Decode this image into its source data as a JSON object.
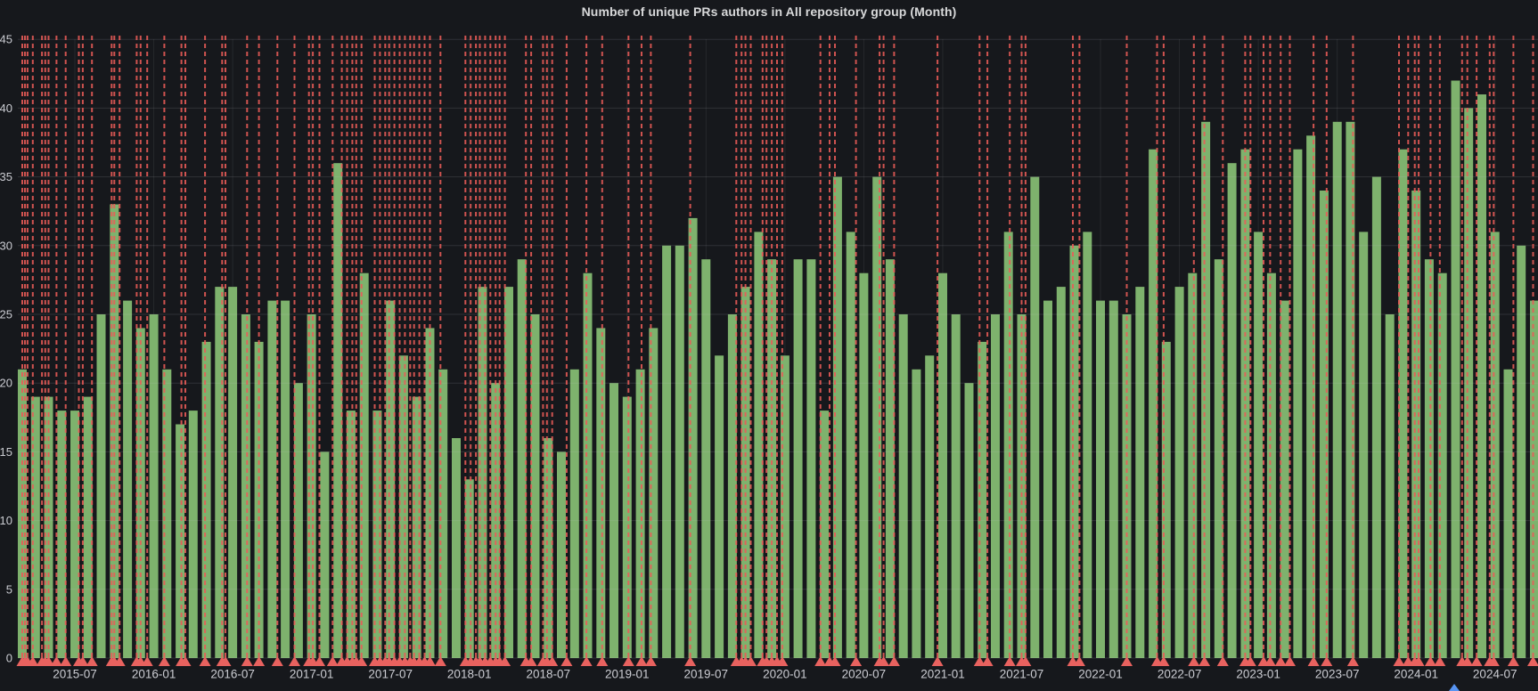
{
  "panel": {
    "title": "Number of unique PRs authors in All repository group (Month)"
  },
  "chart_data": {
    "type": "bar",
    "title": "Number of unique PRs authors in All repository group (Month)",
    "xlabel": "",
    "ylabel": "",
    "ylim": [
      0,
      45
    ],
    "y_ticks": [
      0,
      5,
      10,
      15,
      20,
      25,
      30,
      35,
      40,
      45
    ],
    "x_tick_labels": [
      "2015-07",
      "2016-01",
      "2016-07",
      "2017-01",
      "2017-07",
      "2018-01",
      "2018-07",
      "2019-01",
      "2019-07",
      "2020-01",
      "2020-07",
      "2021-01",
      "2021-07",
      "2022-01",
      "2022-07",
      "2023-01",
      "2023-07",
      "2024-01",
      "2024-07"
    ],
    "grid": true,
    "legend_position": "none",
    "series_name": "Number of unique PRs authors",
    "categories": [
      "2015-03",
      "2015-04",
      "2015-05",
      "2015-06",
      "2015-07",
      "2015-08",
      "2015-09",
      "2015-10",
      "2015-11",
      "2015-12",
      "2016-01",
      "2016-02",
      "2016-03",
      "2016-04",
      "2016-05",
      "2016-06",
      "2016-07",
      "2016-08",
      "2016-09",
      "2016-10",
      "2016-11",
      "2016-12",
      "2017-01",
      "2017-02",
      "2017-03",
      "2017-04",
      "2017-05",
      "2017-06",
      "2017-07",
      "2017-08",
      "2017-09",
      "2017-10",
      "2017-11",
      "2017-12",
      "2018-01",
      "2018-02",
      "2018-03",
      "2018-04",
      "2018-05",
      "2018-06",
      "2018-07",
      "2018-08",
      "2018-09",
      "2018-10",
      "2018-11",
      "2018-12",
      "2019-01",
      "2019-02",
      "2019-03",
      "2019-04",
      "2019-05",
      "2019-06",
      "2019-07",
      "2019-08",
      "2019-09",
      "2019-10",
      "2019-11",
      "2019-12",
      "2020-01",
      "2020-02",
      "2020-03",
      "2020-04",
      "2020-05",
      "2020-06",
      "2020-07",
      "2020-08",
      "2020-09",
      "2020-10",
      "2020-11",
      "2020-12",
      "2021-01",
      "2021-02",
      "2021-03",
      "2021-04",
      "2021-05",
      "2021-06",
      "2021-07",
      "2021-08",
      "2021-09",
      "2021-10",
      "2021-11",
      "2021-12",
      "2022-01",
      "2022-02",
      "2022-03",
      "2022-04",
      "2022-05",
      "2022-06",
      "2022-07",
      "2022-08",
      "2022-09",
      "2022-10",
      "2022-11",
      "2022-12",
      "2023-01",
      "2023-02",
      "2023-03",
      "2023-04",
      "2023-05",
      "2023-06",
      "2023-07",
      "2023-08",
      "2023-09",
      "2023-10",
      "2023-11",
      "2023-12",
      "2024-01",
      "2024-02",
      "2024-03",
      "2024-04",
      "2024-05",
      "2024-06",
      "2024-07",
      "2024-08",
      "2024-09",
      "2024-10"
    ],
    "values": [
      21,
      19,
      19,
      18,
      18,
      19,
      25,
      33,
      26,
      24,
      25,
      21,
      17,
      18,
      23,
      27,
      27,
      25,
      23,
      26,
      26,
      20,
      25,
      15,
      36,
      18,
      28,
      18,
      26,
      22,
      19,
      24,
      21,
      16,
      13,
      27,
      20,
      27,
      29,
      25,
      16,
      15,
      21,
      28,
      24,
      20,
      19,
      21,
      24,
      30,
      30,
      32,
      29,
      22,
      25,
      27,
      31,
      29,
      22,
      29,
      29,
      18,
      35,
      31,
      28,
      35,
      29,
      25,
      21,
      22,
      28,
      25,
      20,
      23,
      25,
      31,
      25,
      35,
      26,
      27,
      30,
      31,
      26,
      26,
      25,
      27,
      37,
      23,
      27,
      28,
      39,
      29,
      36,
      37,
      31,
      28,
      26,
      37,
      38,
      34,
      39,
      39,
      31,
      35,
      25,
      37,
      34,
      29,
      28,
      42,
      40,
      41,
      31,
      21,
      30,
      26
    ],
    "annotations": {
      "style": "vertical dashed red lines with triangle markers at the x-axis",
      "month_positions": [
        0.0,
        0.2,
        0.4,
        0.8,
        1.5,
        1.75,
        2.0,
        2.6,
        3.3,
        4.3,
        4.6,
        5.3,
        6.8,
        7.0,
        7.4,
        8.7,
        9.0,
        9.5,
        10.8,
        12.1,
        12.4,
        13.9,
        15.2,
        15.45,
        17.1,
        18.0,
        19.4,
        20.7,
        21.8,
        22.1,
        22.6,
        23.6,
        24.3,
        24.7,
        25.1,
        25.4,
        25.8,
        26.8,
        27.2,
        27.6,
        27.9,
        28.3,
        28.7,
        29.1,
        29.5,
        29.8,
        30.2,
        30.6,
        31.0,
        31.8,
        33.7,
        34.1,
        34.5,
        34.8,
        35.2,
        35.6,
        36.0,
        36.3,
        36.7,
        38.3,
        38.7,
        39.6,
        39.9,
        40.3,
        41.4,
        42.9,
        44.1,
        46.1,
        47.1,
        47.8,
        50.8,
        54.3,
        54.7,
        55.0,
        55.4,
        56.3,
        56.6,
        57.0,
        57.4,
        57.8,
        60.7,
        61.4,
        61.8,
        63.4,
        65.2,
        65.5,
        66.3,
        69.6,
        72.8,
        73.4,
        75.1,
        76.0,
        76.3,
        79.9,
        80.4,
        84.0,
        86.3,
        86.8,
        89.1,
        89.9,
        91.3,
        93.0,
        93.4,
        94.4,
        94.9,
        95.7,
        96.4,
        98.2,
        99.2,
        101.2,
        104.7,
        105.4,
        105.9,
        106.2,
        107.1,
        107.8,
        109.5,
        109.9,
        110.6,
        111.6,
        111.9,
        113.4,
        114.9
      ],
      "blue_marker_month_position": 108.9
    },
    "colors": {
      "background": "#16181C",
      "bar": "#7EB26D",
      "annotation_line": "#EB5B58",
      "annotation_marker": "#E8625F",
      "blue_marker": "#5794F2",
      "text": "#CBCCD2",
      "title_text": "#D8D9DA",
      "grid_h": "rgba(202,206,216,0.14)",
      "grid_v": "rgba(202,206,216,0.09)"
    }
  }
}
